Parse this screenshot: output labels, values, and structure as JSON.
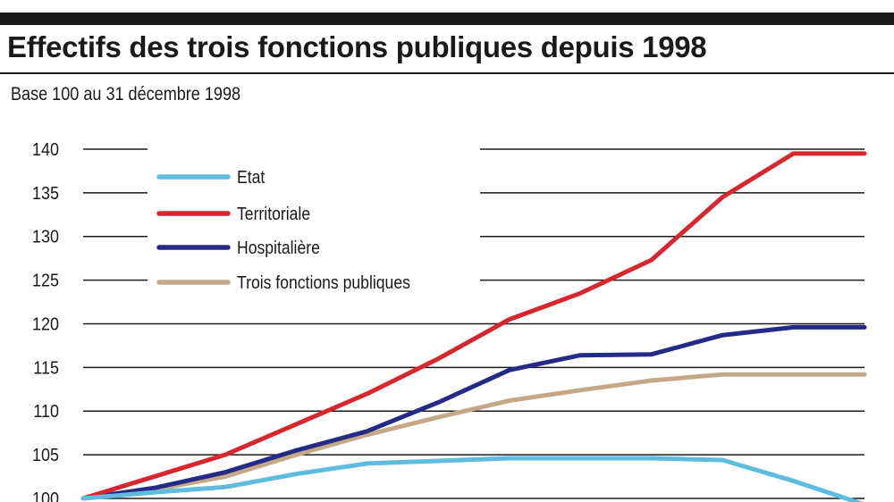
{
  "header": {
    "title": "Effectifs des trois fonctions publiques depuis 1998",
    "subtitle": "Base 100 au 31 décembre 1998"
  },
  "colors": {
    "etat": "#5fbcdf",
    "territoriale": "#d8262e",
    "hospitaliere": "#242a86",
    "trois": "#c4a988",
    "gridline": "#1a1a1a",
    "text": "#1a1a1a"
  },
  "chart_data": {
    "type": "line",
    "title": "Effectifs des trois fonctions publiques depuis 1998",
    "subtitle": "Base 100 au 31 décembre 1998",
    "xlabel": "",
    "ylabel": "",
    "ylim": [
      100,
      140
    ],
    "yticks": [
      100,
      105,
      110,
      115,
      120,
      125,
      130,
      135,
      140
    ],
    "x": [
      0,
      1,
      2,
      3,
      4,
      5,
      6,
      7,
      8,
      9,
      10,
      11
    ],
    "grid": true,
    "legend_position": "top-left",
    "series": [
      {
        "name": "Etat",
        "color": "#5fbcdf",
        "values": [
          100,
          100.7,
          101.3,
          102.8,
          104,
          104.3,
          104.6,
          104.6,
          104.6,
          104.4,
          102,
          99.3
        ]
      },
      {
        "name": "Territoriale",
        "color": "#d8262e",
        "values": [
          100,
          102.5,
          105,
          108.5,
          112,
          116,
          120.5,
          123.5,
          127.3,
          134.5,
          139.5,
          139.5
        ]
      },
      {
        "name": "Hospitalière",
        "color": "#242a86",
        "values": [
          100,
          101.2,
          103,
          105.5,
          107.7,
          111,
          114.7,
          116.4,
          116.5,
          118.7,
          119.6,
          119.6
        ]
      },
      {
        "name": "Trois fonctions publiques",
        "color": "#c4a988",
        "values": [
          100,
          101,
          102.5,
          105,
          107.3,
          109.3,
          111.2,
          112.4,
          113.5,
          114.2,
          114.2,
          114.2
        ]
      }
    ]
  }
}
